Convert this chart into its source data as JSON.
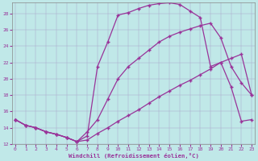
{
  "xlabel": "Windchill (Refroidissement éolien,°C)",
  "background_color": "#c0e8e8",
  "line_color": "#993399",
  "xlim": [
    0,
    23
  ],
  "ylim": [
    12,
    29
  ],
  "xticks": [
    0,
    1,
    2,
    3,
    4,
    5,
    6,
    7,
    8,
    9,
    10,
    11,
    12,
    13,
    14,
    15,
    16,
    17,
    18,
    19,
    20,
    21,
    22,
    23
  ],
  "yticks": [
    12,
    14,
    16,
    18,
    20,
    22,
    24,
    26,
    28
  ],
  "curve_upper_x": [
    0,
    1,
    2,
    3,
    4,
    5,
    6,
    7,
    8,
    9,
    10,
    11,
    12,
    13,
    14,
    15,
    16,
    17,
    18,
    19,
    20,
    21,
    22,
    23
  ],
  "curve_upper_y": [
    15.0,
    14.3,
    14.0,
    13.5,
    13.2,
    12.8,
    12.3,
    13.0,
    21.5,
    24.5,
    27.8,
    28.1,
    28.6,
    29.0,
    29.2,
    29.3,
    29.1,
    28.3,
    27.5,
    21.5,
    22.0,
    19.0,
    14.8,
    15.0
  ],
  "curve_mid_x": [
    0,
    1,
    2,
    3,
    4,
    5,
    6,
    7,
    8,
    9,
    10,
    11,
    12,
    13,
    14,
    15,
    16,
    17,
    18,
    19,
    20,
    21,
    22,
    23
  ],
  "curve_mid_y": [
    15.0,
    14.3,
    14.0,
    13.5,
    13.2,
    12.8,
    12.3,
    13.5,
    15.0,
    17.5,
    20.0,
    21.5,
    22.5,
    23.5,
    24.5,
    25.2,
    25.7,
    26.1,
    26.5,
    26.8,
    25.0,
    21.5,
    19.5,
    18.0
  ],
  "curve_lower_x": [
    0,
    1,
    2,
    3,
    4,
    5,
    6,
    7,
    8,
    9,
    10,
    11,
    12,
    13,
    14,
    15,
    16,
    17,
    18,
    19,
    20,
    21,
    22,
    23
  ],
  "curve_lower_y": [
    15.0,
    14.3,
    14.0,
    13.5,
    13.2,
    12.8,
    12.3,
    12.5,
    13.3,
    14.0,
    14.8,
    15.5,
    16.2,
    17.0,
    17.8,
    18.5,
    19.2,
    19.8,
    20.5,
    21.2,
    22.0,
    22.5,
    23.0,
    18.0
  ]
}
